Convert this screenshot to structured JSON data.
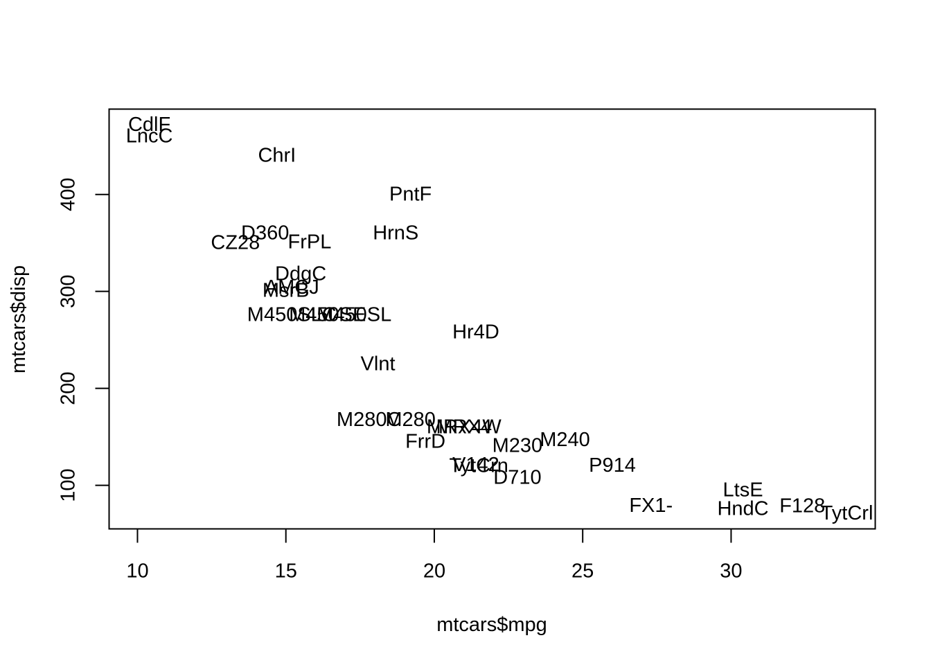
{
  "chart_data": {
    "type": "scatter",
    "title": "",
    "xlabel": "mtcars$mpg",
    "ylabel": "mtcars$disp",
    "xlim": [
      10,
      33.9
    ],
    "ylim": [
      71.1,
      472
    ],
    "x_ticks": [
      10,
      15,
      20,
      25,
      30
    ],
    "y_ticks": [
      100,
      200,
      300,
      400
    ],
    "grid": false,
    "legend": "none",
    "marker": "text",
    "points": [
      {
        "label": "M240",
        "x": 24.4,
        "y": 146.7
      },
      {
        "label": "M230",
        "x": 22.8,
        "y": 140.8
      },
      {
        "label": "M280",
        "x": 19.2,
        "y": 167.6
      },
      {
        "label": "M280C",
        "x": 17.8,
        "y": 167.6
      },
      {
        "label": "M450SE",
        "x": 16.4,
        "y": 275.8
      },
      {
        "label": "M450SL",
        "x": 17.3,
        "y": 275.8
      },
      {
        "label": "M450SLC",
        "x": 15.2,
        "y": 275.8
      },
      {
        "label": "CdlF",
        "x": 10.4,
        "y": 472
      },
      {
        "label": "LncC",
        "x": 10.4,
        "y": 460
      },
      {
        "label": "ChrI",
        "x": 14.7,
        "y": 440
      },
      {
        "label": "F128",
        "x": 32.4,
        "y": 78.7
      },
      {
        "label": "HndC",
        "x": 30.4,
        "y": 75.7
      },
      {
        "label": "TytCrl",
        "x": 33.9,
        "y": 71.1
      },
      {
        "label": "TytCrn",
        "x": 21.5,
        "y": 120.1
      },
      {
        "label": "DdgC",
        "x": 15.5,
        "y": 318
      },
      {
        "label": "AMCJ",
        "x": 15.2,
        "y": 304
      },
      {
        "label": "CZ28",
        "x": 13.3,
        "y": 350
      },
      {
        "label": "PntF",
        "x": 19.2,
        "y": 400
      },
      {
        "label": "FX1-",
        "x": 27.3,
        "y": 79
      },
      {
        "label": "P914",
        "x": 26,
        "y": 120.3
      },
      {
        "label": "LtsE",
        "x": 30.4,
        "y": 95.1
      },
      {
        "label": "FrPL",
        "x": 15.8,
        "y": 351
      },
      {
        "label": "FrrD",
        "x": 19.7,
        "y": 145
      },
      {
        "label": "MsrB",
        "x": 15,
        "y": 301
      },
      {
        "label": "V142",
        "x": 21.4,
        "y": 121
      },
      {
        "label": "MRX4",
        "x": 21,
        "y": 160
      },
      {
        "label": "MRX4W",
        "x": 21,
        "y": 160
      },
      {
        "label": "D710",
        "x": 22.8,
        "y": 108
      },
      {
        "label": "Hr4D",
        "x": 21.4,
        "y": 258
      },
      {
        "label": "HrnS",
        "x": 18.7,
        "y": 360
      },
      {
        "label": "Vlnt",
        "x": 18.1,
        "y": 225
      },
      {
        "label": "D360",
        "x": 14.3,
        "y": 360
      }
    ]
  }
}
